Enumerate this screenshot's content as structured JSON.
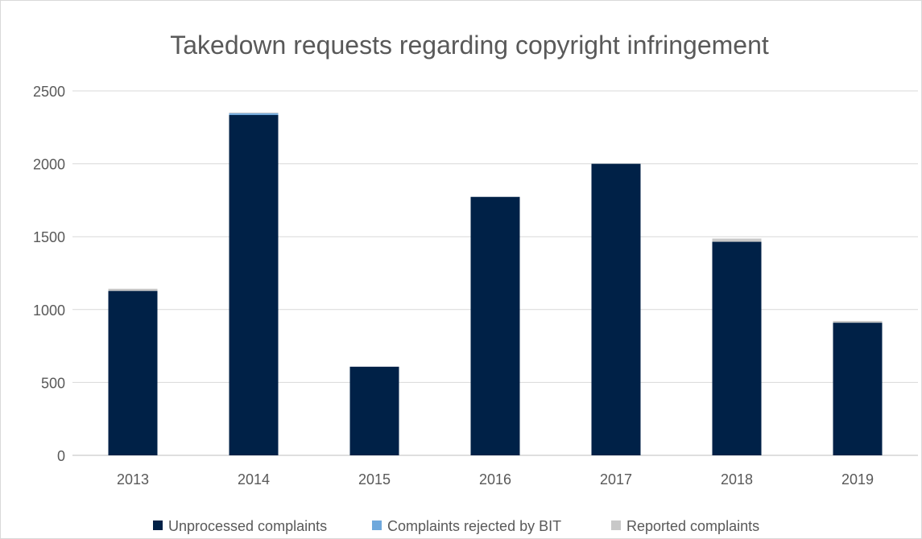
{
  "chart_data": {
    "type": "bar",
    "stacked": true,
    "title": "Takedown requests regarding copyright infringement",
    "xlabel": "",
    "ylabel": "",
    "categories": [
      "2013",
      "2014",
      "2015",
      "2016",
      "2017",
      "2018",
      "2019"
    ],
    "ylim": [
      0,
      2500
    ],
    "yticks": [
      0,
      500,
      1000,
      1500,
      2000,
      2500
    ],
    "grid": true,
    "legend_position": "bottom",
    "series": [
      {
        "name": "Unprocessed complaints",
        "color": "#002147",
        "values": [
          1128,
          2335,
          608,
          1773,
          2000,
          1465,
          910
        ]
      },
      {
        "name": "Complaints rejected by BIT",
        "color": "#6fa8dc",
        "values": [
          0,
          12,
          0,
          0,
          0,
          0,
          0
        ]
      },
      {
        "name": "Reported complaints",
        "color": "#c8c8c8",
        "values": [
          15,
          5,
          0,
          0,
          0,
          22,
          12
        ]
      }
    ]
  }
}
